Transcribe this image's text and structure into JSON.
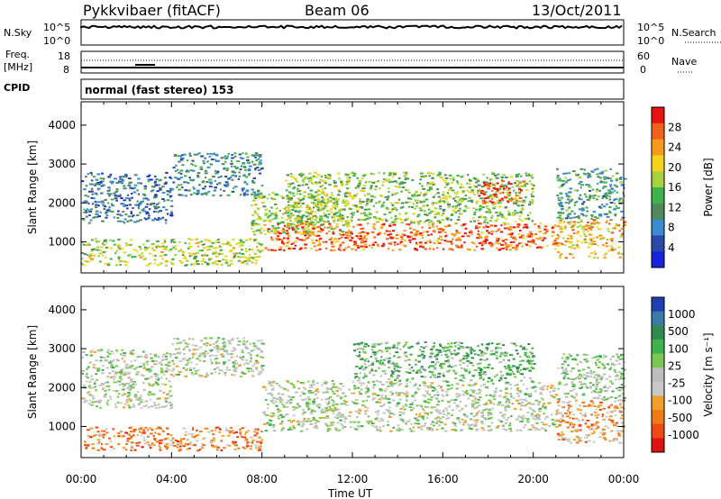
{
  "header": {
    "station": "Pykkvibaer (fitACF)",
    "beam": "Beam 06",
    "date": "13/Oct/2011"
  },
  "strips": {
    "nsky_label": "N.Sky",
    "nsky_ticks": [
      "10^5",
      "10^0"
    ],
    "nsearch_label": "N.Search",
    "freq_label": "Freq.",
    "freq_unit": "[MHz]",
    "freq_ticks": [
      "18",
      "8"
    ],
    "nave_label": "Nave",
    "nave_ticks": [
      "60",
      "0"
    ],
    "cpid_label": "CPID",
    "cpid_value": "normal (fast stereo) 153"
  },
  "colors": {
    "power": [
      "#1a22e0",
      "#2a49a8",
      "#3a8ad0",
      "#4f8a5c",
      "#3fb34a",
      "#a7d23c",
      "#f5d31c",
      "#f79a1a",
      "#f06018",
      "#e8120e"
    ],
    "velocity": [
      "#1f3fb0",
      "#3a7aa8",
      "#2f8a50",
      "#3fb34a",
      "#7ac853",
      "#bdbdbd",
      "#c8c8c8",
      "#f0a028",
      "#f07a18",
      "#f04a14",
      "#e01210"
    ]
  },
  "chart_data": [
    {
      "type": "heatmap",
      "panel": "power",
      "ylabel": "Slant Range [km]",
      "xlabel": "Time UT",
      "x_ticks": [
        "00:00",
        "04:00",
        "08:00",
        "12:00",
        "16:00",
        "20:00",
        "00:00"
      ],
      "y_ticks": [
        1000,
        2000,
        3000,
        4000
      ],
      "ylim": [
        200,
        4600
      ],
      "xlim_hours": [
        0,
        24
      ],
      "colorbar_label": "Power [dB]",
      "colorbar_ticks": [
        "4",
        "8",
        "12",
        "16",
        "20",
        "24",
        "28"
      ],
      "regions": [
        {
          "t": [
            0,
            8
          ],
          "r": [
            400,
            1100
          ],
          "level": 0.55
        },
        {
          "t": [
            0,
            4
          ],
          "r": [
            1500,
            2800
          ],
          "level": 0.25
        },
        {
          "t": [
            4,
            8
          ],
          "r": [
            2200,
            3300
          ],
          "level": 0.3
        },
        {
          "t": [
            7.5,
            12
          ],
          "r": [
            1200,
            2300
          ],
          "level": 0.55
        },
        {
          "t": [
            8,
            21
          ],
          "r": [
            800,
            1500
          ],
          "level": 0.85
        },
        {
          "t": [
            9,
            20
          ],
          "r": [
            1500,
            2800
          ],
          "level": 0.5
        },
        {
          "t": [
            17.5,
            19.5
          ],
          "r": [
            2000,
            2600
          ],
          "level": 0.9
        },
        {
          "t": [
            21,
            24
          ],
          "r": [
            600,
            1600
          ],
          "level": 0.7
        },
        {
          "t": [
            21,
            24
          ],
          "r": [
            1600,
            2900
          ],
          "level": 0.35
        }
      ]
    },
    {
      "type": "heatmap",
      "panel": "velocity",
      "ylabel": "Slant Range [km]",
      "xlabel": "Time UT",
      "x_ticks": [
        "00:00",
        "04:00",
        "08:00",
        "12:00",
        "16:00",
        "20:00",
        "00:00"
      ],
      "y_ticks": [
        1000,
        2000,
        3000,
        4000
      ],
      "ylim": [
        200,
        4600
      ],
      "xlim_hours": [
        0,
        24
      ],
      "colorbar_label": "Velocity [m s⁻¹]",
      "colorbar_ticks": [
        "1000",
        "500",
        "100",
        "25",
        "-25",
        "-100",
        "-500",
        "-1000"
      ],
      "regions": [
        {
          "t": [
            0,
            8
          ],
          "r": [
            400,
            1000
          ],
          "level": 0.75
        },
        {
          "t": [
            0,
            4
          ],
          "r": [
            1500,
            3000
          ],
          "level": 0.5
        },
        {
          "t": [
            4,
            8
          ],
          "r": [
            2300,
            3300
          ],
          "level": 0.5
        },
        {
          "t": [
            8,
            21
          ],
          "r": [
            900,
            2200
          ],
          "level": 0.5
        },
        {
          "t": [
            12,
            20
          ],
          "r": [
            2200,
            3200
          ],
          "level": 0.35
        },
        {
          "t": [
            21,
            24
          ],
          "r": [
            600,
            1700
          ],
          "level": 0.7
        },
        {
          "t": [
            21,
            24
          ],
          "r": [
            1700,
            2900
          ],
          "level": 0.45
        }
      ]
    }
  ]
}
